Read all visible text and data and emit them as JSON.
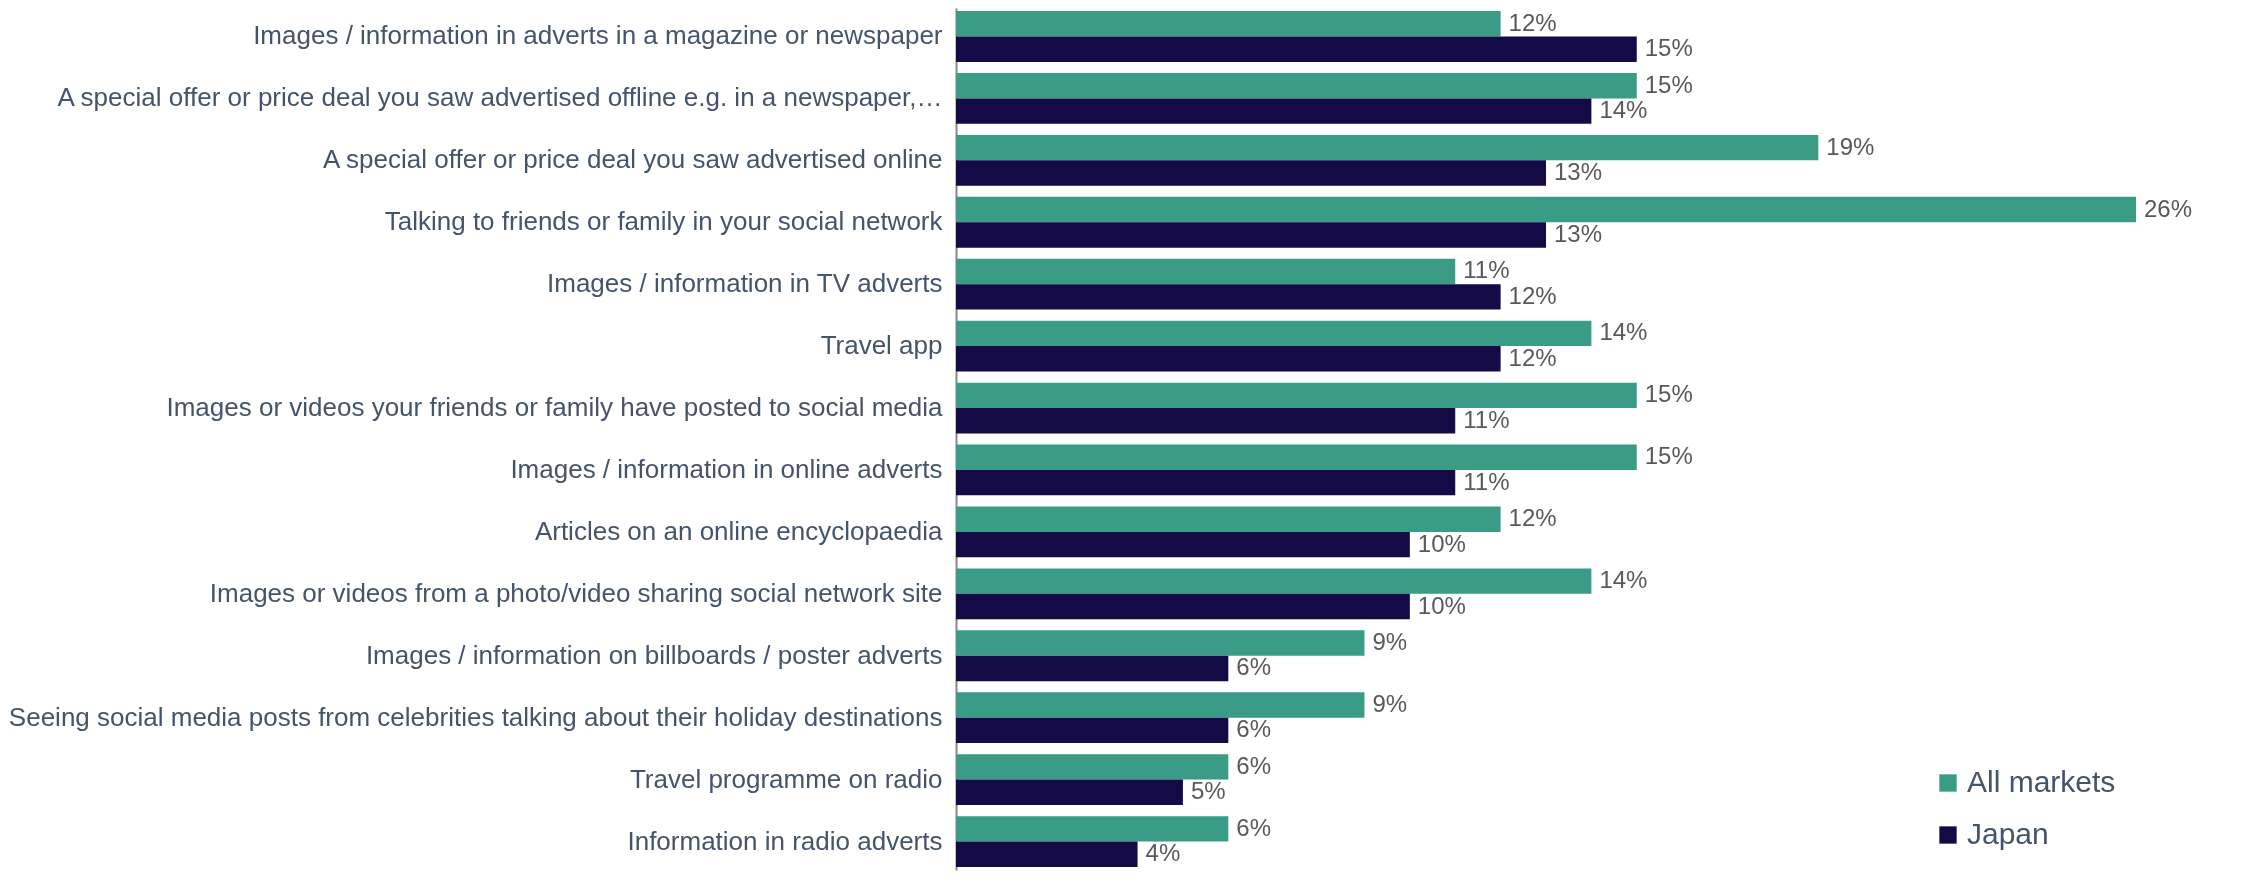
{
  "chart_data": {
    "type": "bar",
    "orientation": "horizontal",
    "legend": "bottom right",
    "categories": [
      "Images / information in adverts in a magazine or newspaper",
      "A special offer or price deal you saw advertised offline e.g. in a newspaper,…",
      "A special offer or price deal you saw advertised online",
      "Talking to friends or family in your social network",
      "Images / information in TV adverts",
      "Travel app",
      "Images or videos your friends or family have posted to social media",
      "Images / information in online adverts",
      "Articles on an online encyclopaedia",
      "Images or videos from a photo/video sharing social network site",
      "Images / information on billboards / poster adverts",
      "Seeing social media posts from celebrities talking about their holiday destinations",
      "Travel programme on radio",
      "Information in radio adverts"
    ],
    "series": [
      {
        "name": "All markets",
        "color": "#3a9c87",
        "values": [
          12,
          15,
          19,
          26,
          11,
          14,
          15,
          15,
          12,
          14,
          9,
          9,
          6,
          6
        ],
        "value_labels": [
          "12%",
          "15%",
          "19%",
          "26%",
          "11%",
          "14%",
          "15%",
          "15%",
          "12%",
          "14%",
          "9%",
          "9%",
          "6%",
          "6%"
        ]
      },
      {
        "name": "Japan",
        "color": "#140a45",
        "values": [
          15,
          14,
          13,
          13,
          12,
          12,
          11,
          11,
          10,
          10,
          6,
          6,
          5,
          4
        ],
        "value_labels": [
          "15%",
          "14%",
          "13%",
          "13%",
          "12%",
          "12%",
          "11%",
          "11%",
          "10%",
          "10%",
          "6%",
          "6%",
          "5%",
          "4%"
        ]
      }
    ]
  }
}
